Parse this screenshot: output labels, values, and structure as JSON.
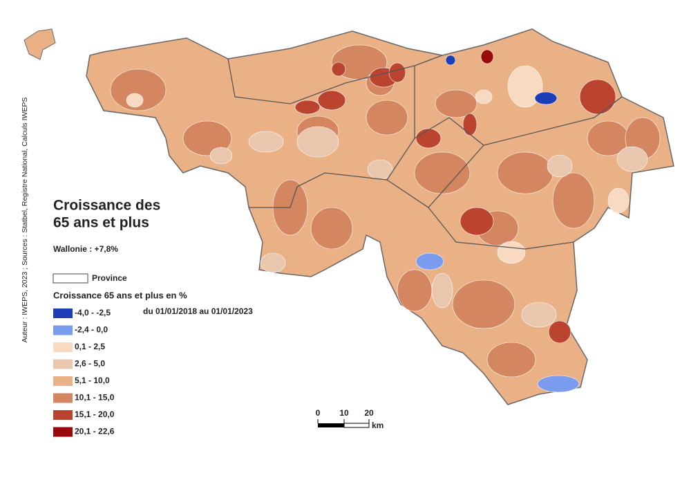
{
  "title_lines": [
    "Croissance des",
    "65 ans et plus"
  ],
  "summary": "Wallonie : +7,8%",
  "province_legend": "Province",
  "legend": {
    "title": "Croissance 65 ans et plus en %",
    "period": "du 01/01/2018 au 01/01/2023",
    "classes": [
      {
        "label": "-4,0 - -2,5",
        "color": "#1c3fb8"
      },
      {
        "label": "-2,4 - 0,0",
        "color": "#7b9cee"
      },
      {
        "label": "0,1 - 2,5",
        "color": "#f8d9c2"
      },
      {
        "label": "2,6 - 5,0",
        "color": "#e9c7ae"
      },
      {
        "label": "5,1 - 10,0",
        "color": "#e9b185"
      },
      {
        "label": "10,1 - 15,0",
        "color": "#d38660"
      },
      {
        "label": "15,1 - 20,0",
        "color": "#bb4430"
      },
      {
        "label": "20,1 - 22,6",
        "color": "#9b0a0a"
      }
    ]
  },
  "scale_bar": {
    "labels": [
      "0",
      "10",
      "20"
    ],
    "unit": "km"
  },
  "source": "Auteur : IWEPS, 2023 ; Sources : Statbel, Registre National, Calculs IWEPS"
}
